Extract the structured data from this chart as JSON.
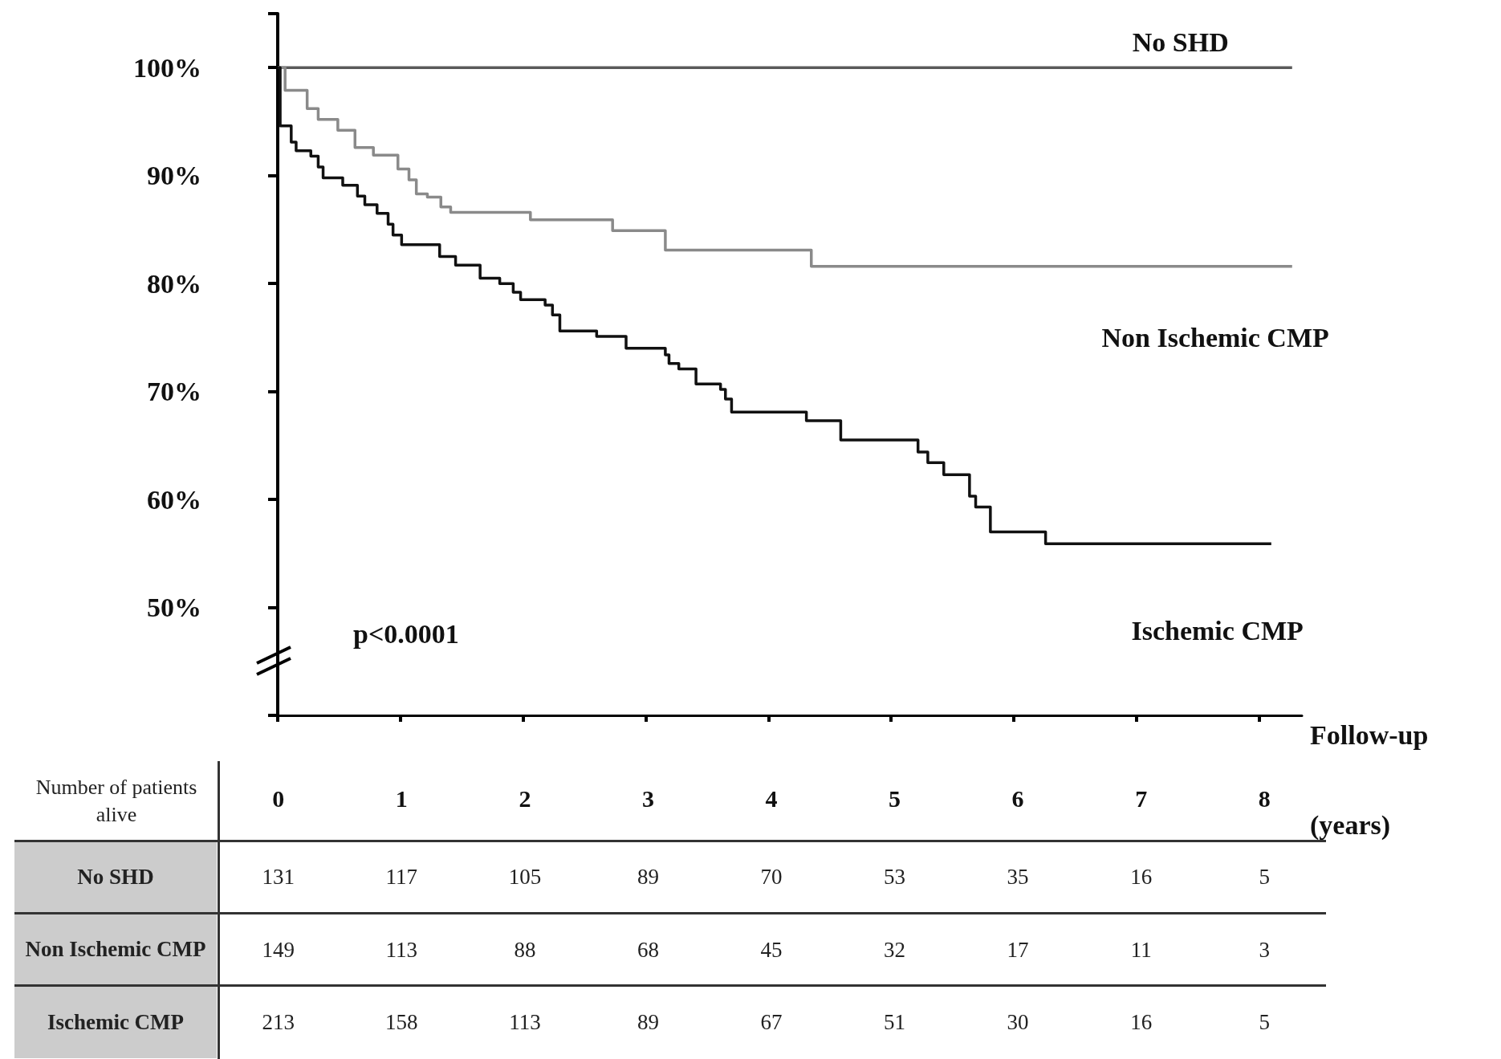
{
  "chart_data": [
    {
      "type": "step",
      "xlabel": "Follow-up (years)",
      "xlim": [
        0,
        8.35
      ],
      "xticks": [
        0,
        1,
        2,
        3,
        4,
        5,
        6,
        7,
        8
      ],
      "ylim": [
        40,
        105
      ],
      "yticks": [
        {
          "value": 50,
          "label": "50%"
        },
        {
          "value": 60,
          "label": "60%"
        },
        {
          "value": 70,
          "label": "70%"
        },
        {
          "value": 80,
          "label": "80%"
        },
        {
          "value": 90,
          "label": "90%"
        },
        {
          "value": 100,
          "label": "100%"
        }
      ],
      "grid": false,
      "tick_labels": "y",
      "annotations": [
        "p<0.0001"
      ],
      "series": [
        {
          "name": "No SHD",
          "color": "#5a5a5a",
          "x": [
            0,
            8.27
          ],
          "values": [
            100,
            100
          ]
        },
        {
          "name": "Non Ischemic CMP",
          "color": "#8a8a8a",
          "x": [
            0,
            0.06,
            0.24,
            0.33,
            0.49,
            0.63,
            0.78,
            0.98,
            1.07,
            1.13,
            1.22,
            1.33,
            1.41,
            2.06,
            2.73,
            3.16,
            4.35,
            8.27
          ],
          "values": [
            100,
            97.9,
            96.2,
            95.2,
            94.2,
            92.6,
            91.9,
            90.6,
            89.6,
            88.3,
            88.0,
            87.1,
            86.6,
            85.9,
            84.9,
            83.1,
            81.6,
            81.6
          ]
        },
        {
          "name": "Ischemic CMP",
          "color": "#111111",
          "x": [
            0,
            0.02,
            0.11,
            0.15,
            0.27,
            0.33,
            0.37,
            0.53,
            0.65,
            0.71,
            0.81,
            0.9,
            0.94,
            1.01,
            1.32,
            1.45,
            1.65,
            1.81,
            1.92,
            1.98,
            2.18,
            2.24,
            2.3,
            2.6,
            2.84,
            3.16,
            3.19,
            3.27,
            3.41,
            3.61,
            3.65,
            3.7,
            4.31,
            4.59,
            5.22,
            5.3,
            5.43,
            5.64,
            5.69,
            5.81,
            6.26,
            8.1
          ],
          "values": [
            100,
            94.6,
            93.1,
            92.3,
            91.8,
            90.8,
            89.8,
            89.1,
            88.1,
            87.3,
            86.5,
            85.5,
            84.5,
            83.6,
            82.5,
            81.7,
            80.5,
            80.0,
            79.2,
            78.5,
            78.0,
            77.1,
            75.6,
            75.1,
            74.0,
            73.4,
            72.6,
            72.1,
            70.7,
            70.2,
            69.3,
            68.1,
            67.3,
            65.5,
            64.4,
            63.4,
            62.3,
            60.3,
            59.3,
            57.0,
            55.9,
            55.9
          ]
        }
      ]
    },
    {
      "type": "heatmap",
      "title": "Number of patients alive",
      "data_labels": true,
      "categories": [
        "0",
        "1",
        "2",
        "3",
        "4",
        "5",
        "6",
        "7",
        "8"
      ],
      "y_categories": [
        "No SHD",
        "Non Ischemic CMP",
        "Ischemic CMP"
      ],
      "cells": [
        [
          131,
          117,
          105,
          89,
          70,
          53,
          35,
          16,
          5
        ],
        [
          149,
          113,
          88,
          68,
          45,
          32,
          17,
          11,
          3
        ],
        [
          213,
          158,
          113,
          89,
          67,
          51,
          30,
          16,
          5
        ]
      ]
    }
  ]
}
